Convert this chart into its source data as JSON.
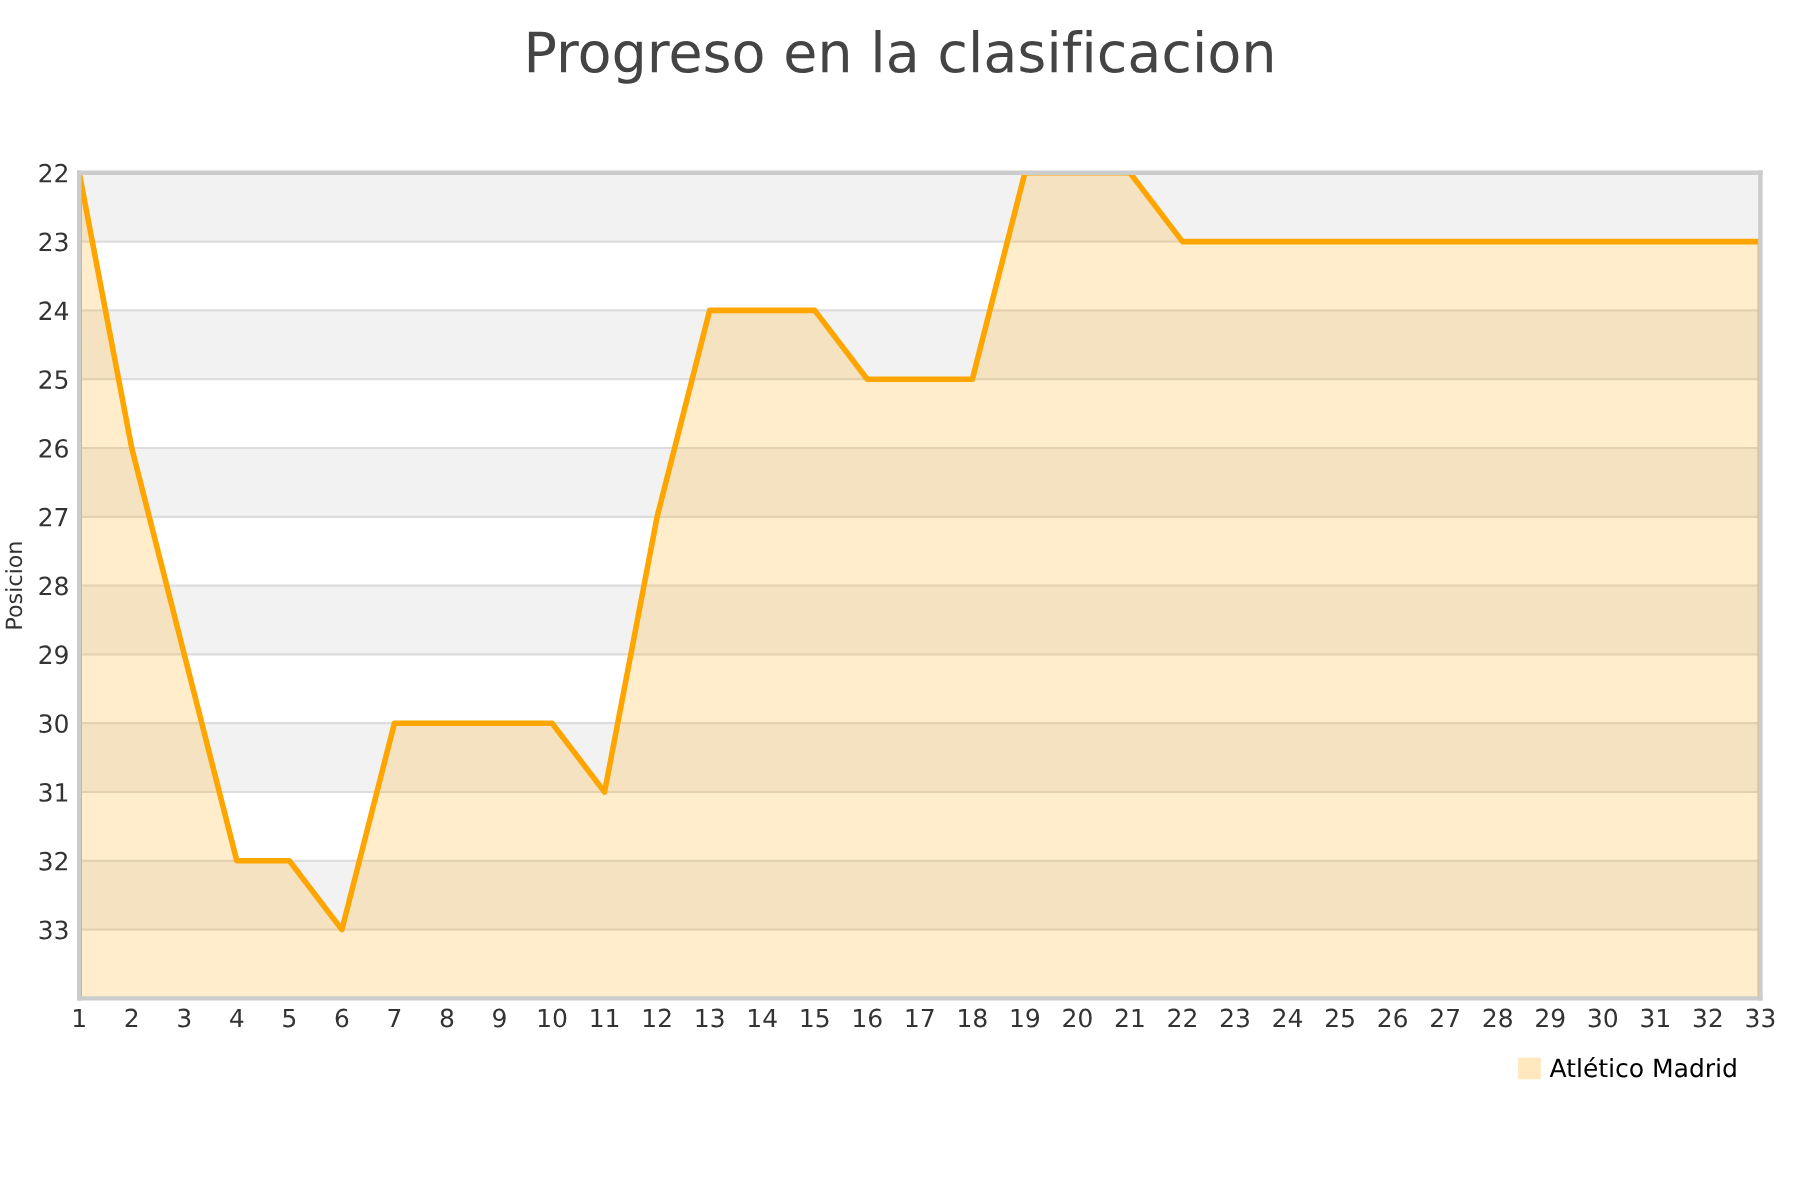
{
  "chart_data": {
    "type": "area",
    "title": "Progreso en la clasificacion",
    "ylabel": "Posicion",
    "categories": [
      "1",
      "2",
      "3",
      "4",
      "5",
      "6",
      "7",
      "8",
      "9",
      "10",
      "11",
      "12",
      "13",
      "14",
      "15",
      "16",
      "17",
      "18",
      "19",
      "20",
      "21",
      "22",
      "23",
      "24",
      "25",
      "26",
      "27",
      "28",
      "29",
      "30",
      "31",
      "32",
      "33"
    ],
    "series": [
      {
        "name": "Atlético Madrid",
        "color": "#ffa500",
        "values": [
          22,
          26,
          29,
          32,
          32,
          33,
          30,
          30,
          30,
          30,
          31,
          27,
          24,
          24,
          24,
          25,
          25,
          25,
          22,
          22,
          22,
          23,
          23,
          23,
          23,
          23,
          23,
          23,
          23,
          23,
          23,
          23,
          23
        ]
      }
    ],
    "bands": [
      {
        "axis": "y",
        "from": 22,
        "to": 23,
        "color": "#f2f2f2"
      },
      {
        "axis": "y",
        "from": 24,
        "to": 25,
        "color": "#f2f2f2"
      },
      {
        "axis": "y",
        "from": 26,
        "to": 27,
        "color": "#f2f2f2"
      },
      {
        "axis": "y",
        "from": 28,
        "to": 29,
        "color": "#f2f2f2"
      },
      {
        "axis": "y",
        "from": 30,
        "to": 31,
        "color": "#f2f2f2"
      },
      {
        "axis": "y",
        "from": 32,
        "to": 33,
        "color": "#f2f2f2"
      }
    ],
    "ylim": [
      34,
      22
    ],
    "yticks": [
      22,
      23,
      24,
      25,
      26,
      27,
      28,
      29,
      30,
      31,
      32,
      33
    ],
    "grid": "y",
    "legend": "bottom right"
  }
}
